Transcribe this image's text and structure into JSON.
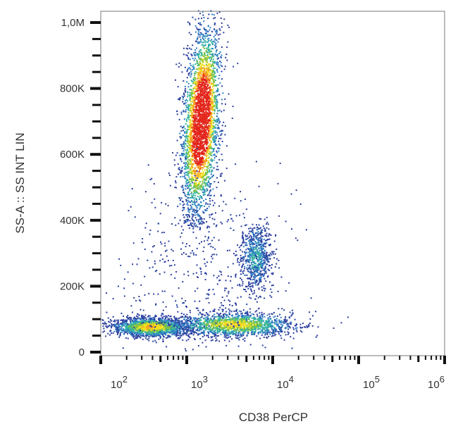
{
  "chart_data": {
    "type": "scatter",
    "subtype": "flow-cytometry density dot plot",
    "title": "",
    "xlabel": "CD38 PerCP",
    "ylabel": "SS-A :: SS INT LIN",
    "x_scale": "log",
    "xlim": [
      100,
      1000000
    ],
    "ylim": [
      0,
      1040000
    ],
    "x_ticks": [
      {
        "value": 100,
        "base": "10",
        "exp": "2"
      },
      {
        "value": 1000,
        "base": "10",
        "exp": "3"
      },
      {
        "value": 10000,
        "base": "10",
        "exp": "4"
      },
      {
        "value": 100000,
        "base": "10",
        "exp": "5"
      },
      {
        "value": 1000000,
        "base": "10",
        "exp": "6"
      }
    ],
    "y_ticks": [
      {
        "value": 0,
        "label": "0"
      },
      {
        "value": 200000,
        "label": "200K"
      },
      {
        "value": 400000,
        "label": "400K"
      },
      {
        "value": 600000,
        "label": "600K"
      },
      {
        "value": 800000,
        "label": "800K"
      },
      {
        "value": 1000000,
        "label": "1,0M"
      }
    ],
    "grid": false,
    "density_colors": [
      "#2b3f9e",
      "#2f7fc4",
      "#33b5a0",
      "#7cc242",
      "#f2e01f",
      "#f39a1e",
      "#e3261c"
    ],
    "populations": [
      {
        "center_x": 1450,
        "center_y": 700000,
        "sd_log_x": 0.1,
        "sd_y": 140000,
        "y_range": [
          380000,
          1040000
        ],
        "x_slope_log_per_100k": 0.025,
        "events": 3200
      },
      {
        "center_x": 6300,
        "center_y": 290000,
        "sd_log_x": 0.09,
        "sd_y": 48000,
        "events": 700
      },
      {
        "center_x": 380,
        "center_y": 78000,
        "sd_log_x": 0.22,
        "sd_y": 14000,
        "events": 1700
      },
      {
        "center_x": 3500,
        "center_y": 85000,
        "sd_log_x": 0.35,
        "sd_y": 18000,
        "events": 1500
      },
      {
        "center_x": 1500,
        "center_y": 250000,
        "sd_log_x": 0.45,
        "sd_y": 150000,
        "events": 500
      }
    ]
  }
}
